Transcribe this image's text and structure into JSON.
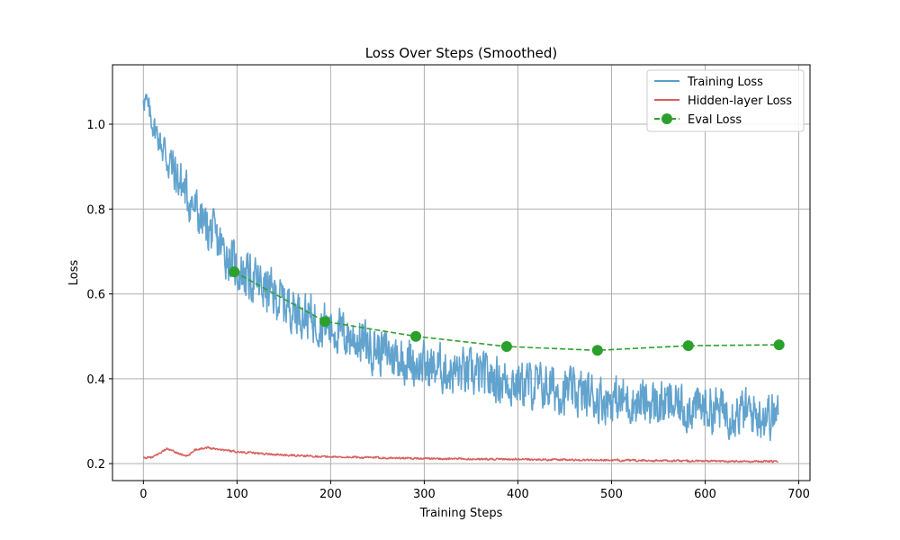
{
  "chart_data": {
    "type": "line",
    "title": "Loss Over Steps (Smoothed)",
    "xlabel": "Training Steps",
    "ylabel": "Loss",
    "xlim": [
      -33,
      712
    ],
    "ylim": [
      0.16,
      1.14
    ],
    "xticks": [
      0,
      100,
      200,
      300,
      400,
      500,
      600,
      700
    ],
    "yticks": [
      0.2,
      0.4,
      0.6,
      0.8,
      1.0
    ],
    "xtick_labels": [
      "0",
      "100",
      "200",
      "300",
      "400",
      "500",
      "600",
      "700"
    ],
    "ytick_labels": [
      "0.2",
      "0.4",
      "0.6",
      "0.8",
      "1.0"
    ],
    "grid": true,
    "legend_position": "top-right",
    "series": [
      {
        "name": "Training Loss",
        "color": "#5a9ecb",
        "style": "solid",
        "noise_amplitude": 0.075,
        "trend": {
          "x": [
            0,
            10,
            30,
            60,
            100,
            150,
            200,
            250,
            300,
            350,
            400,
            450,
            500,
            550,
            600,
            650,
            678
          ],
          "y": [
            1.07,
            1.0,
            0.9,
            0.78,
            0.66,
            0.58,
            0.52,
            0.47,
            0.43,
            0.41,
            0.39,
            0.37,
            0.35,
            0.34,
            0.33,
            0.32,
            0.315
          ]
        }
      },
      {
        "name": "Hidden-layer Loss",
        "color": "#d95f5f",
        "style": "solid",
        "noise_amplitude": 0.003,
        "trend": {
          "x": [
            0,
            10,
            25,
            40,
            48,
            55,
            68,
            100,
            150,
            200,
            300,
            400,
            500,
            600,
            678
          ],
          "y": [
            0.213,
            0.215,
            0.235,
            0.222,
            0.218,
            0.233,
            0.238,
            0.228,
            0.22,
            0.216,
            0.212,
            0.21,
            0.208,
            0.206,
            0.205
          ]
        }
      },
      {
        "name": "Eval Loss",
        "color": "#2ca02c",
        "style": "dashed",
        "marker": "circle",
        "x": [
          97,
          194,
          291,
          388,
          485,
          582,
          679
        ],
        "y": [
          0.652,
          0.535,
          0.5,
          0.476,
          0.467,
          0.478,
          0.48
        ]
      }
    ]
  }
}
